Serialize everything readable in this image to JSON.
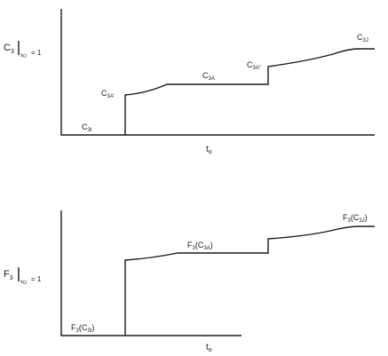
{
  "chart_data": [
    {
      "type": "line",
      "ylabel": {
        "main": "C",
        "sub1": "3",
        "bar_sub": "x",
        "bar_sub2": "O",
        "eq": "= 1"
      },
      "xlabel": {
        "main": "t",
        "sub": "o"
      },
      "annotations": [
        {
          "id": "c3i",
          "main": "C",
          "sub": "3I"
        },
        {
          "id": "c3a_prime",
          "main": "C",
          "sub": "3A'"
        },
        {
          "id": "c3a",
          "main": "C",
          "sub": "3A"
        },
        {
          "id": "c3a_dprime",
          "main": "C",
          "sub": "3A\""
        },
        {
          "id": "c3j",
          "main": "C",
          "sub": "3J"
        }
      ]
    },
    {
      "type": "line",
      "ylabel": {
        "main": "F",
        "sub1": "3",
        "bar_sub": "x",
        "bar_sub2": "O",
        "eq": "= 1"
      },
      "xlabel": {
        "main": "t",
        "sub": "o"
      },
      "annotations": [
        {
          "id": "f3c3i",
          "pre": "F",
          "pre_sub": "3",
          "open": "(C",
          "sub": "3I",
          "close": ")"
        },
        {
          "id": "f3c3a",
          "pre": "F",
          "pre_sub": "3",
          "open": "(C",
          "sub": "3A",
          "close": ")"
        },
        {
          "id": "f3c3j",
          "pre": "F",
          "pre_sub": "3",
          "open": "(C",
          "sub": "3J",
          "close": ")"
        }
      ]
    }
  ]
}
